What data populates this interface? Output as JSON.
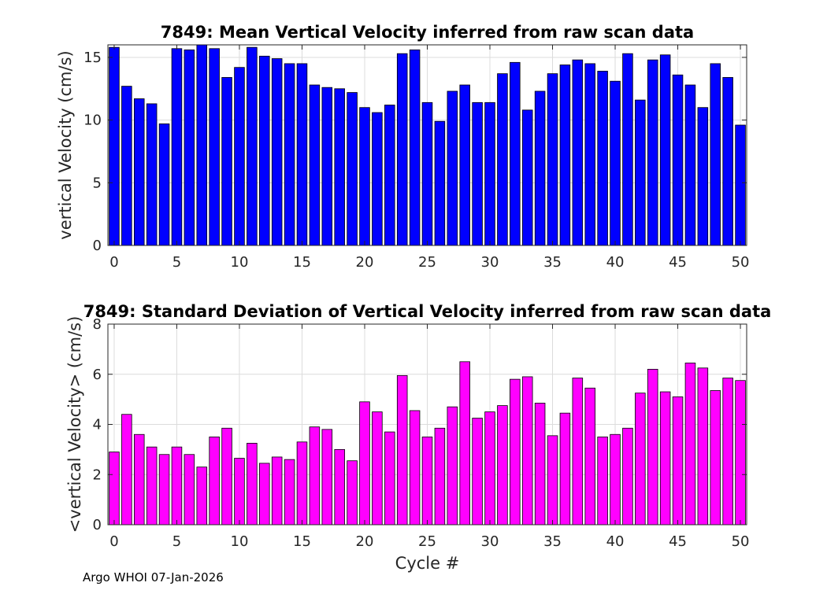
{
  "colors": {
    "top_bar": "#0000ff",
    "bottom_bar": "#ff00ff",
    "bar_edge": "#000000",
    "grid": "#dcdcdc",
    "axis": "#262626"
  },
  "chart_data": [
    {
      "type": "bar",
      "title": "7849: Mean Vertical Velocity inferred from raw scan data",
      "xlabel": "",
      "ylabel": "vertical Velocity (cm/s)",
      "xlim": [
        -0.5,
        50.5
      ],
      "ylim": [
        0,
        16
      ],
      "xticks": [
        0,
        5,
        10,
        15,
        20,
        25,
        30,
        35,
        40,
        45,
        50
      ],
      "yticks": [
        0,
        5,
        10,
        15
      ],
      "grid": true,
      "color": "#0000ff",
      "x": [
        0,
        1,
        2,
        3,
        4,
        5,
        6,
        7,
        8,
        9,
        10,
        11,
        12,
        13,
        14,
        15,
        16,
        17,
        18,
        19,
        20,
        21,
        22,
        23,
        24,
        25,
        26,
        27,
        28,
        29,
        30,
        31,
        32,
        33,
        34,
        35,
        36,
        37,
        38,
        39,
        40,
        41,
        42,
        43,
        44,
        45,
        46,
        47,
        48,
        49,
        50
      ],
      "values": [
        15.8,
        12.7,
        11.7,
        11.3,
        9.7,
        15.7,
        15.6,
        16.0,
        15.7,
        13.4,
        14.2,
        15.8,
        15.1,
        14.9,
        14.5,
        14.5,
        12.8,
        12.6,
        12.5,
        12.2,
        11.0,
        10.6,
        11.2,
        15.3,
        15.6,
        11.4,
        9.9,
        12.3,
        12.8,
        11.4,
        11.4,
        13.7,
        14.6,
        10.8,
        12.3,
        13.7,
        14.4,
        14.8,
        14.5,
        13.9,
        13.1,
        15.3,
        11.6,
        14.8,
        15.2,
        13.6,
        12.8,
        11.0,
        14.5,
        13.4,
        9.6
      ]
    },
    {
      "type": "bar",
      "title": "7849: Standard Deviation of Vertical Velocity inferred from raw scan data",
      "xlabel": "Cycle #",
      "ylabel": "<vertical Velocity> (cm/s)",
      "xlim": [
        -0.5,
        50.5
      ],
      "ylim": [
        0,
        8
      ],
      "xticks": [
        0,
        5,
        10,
        15,
        20,
        25,
        30,
        35,
        40,
        45,
        50
      ],
      "yticks": [
        0,
        2,
        4,
        6,
        8
      ],
      "grid": true,
      "color": "#ff00ff",
      "x": [
        0,
        1,
        2,
        3,
        4,
        5,
        6,
        7,
        8,
        9,
        10,
        11,
        12,
        13,
        14,
        15,
        16,
        17,
        18,
        19,
        20,
        21,
        22,
        23,
        24,
        25,
        26,
        27,
        28,
        29,
        30,
        31,
        32,
        33,
        34,
        35,
        36,
        37,
        38,
        39,
        40,
        41,
        42,
        43,
        44,
        45,
        46,
        47,
        48,
        49,
        50
      ],
      "values": [
        2.9,
        4.4,
        3.6,
        3.1,
        2.8,
        3.1,
        2.8,
        2.3,
        3.5,
        3.85,
        2.65,
        3.25,
        2.45,
        2.7,
        2.6,
        3.3,
        3.9,
        3.8,
        3.0,
        2.55,
        4.9,
        4.5,
        3.7,
        5.95,
        4.55,
        3.5,
        3.85,
        4.7,
        6.5,
        4.25,
        4.5,
        4.75,
        5.8,
        5.9,
        4.85,
        3.55,
        4.45,
        5.85,
        5.45,
        3.5,
        3.6,
        3.85,
        5.25,
        6.2,
        5.3,
        5.1,
        6.45,
        6.25,
        5.35,
        5.85,
        5.75
      ]
    }
  ],
  "footer": {
    "text": "Argo WHOI 07-Jan-2026"
  }
}
